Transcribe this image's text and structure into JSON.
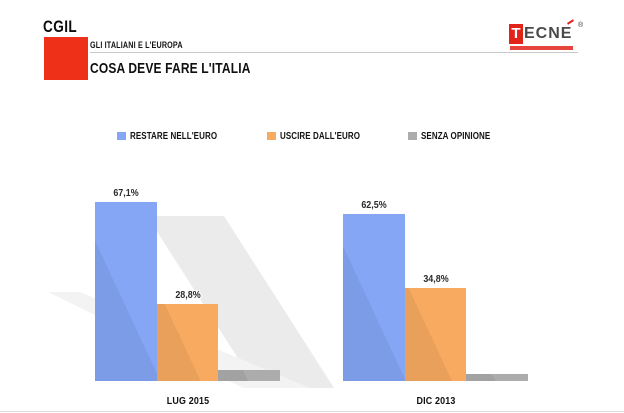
{
  "header": {
    "brand": "CGIL",
    "program": "GLI ITALIANI E L'EUROPA",
    "title": "COSA DEVE FARE L'ITALIA"
  },
  "tecne_logo": {
    "t": "T",
    "letters": "ECN",
    "last_letter": "E",
    "registered": "®"
  },
  "colors": {
    "cgil_red": "#ee3018",
    "tecne_red": "#e2231a",
    "restare_blue": "#85a6f5",
    "uscire_orange": "#f7aa60",
    "senza_gray": "#acacac",
    "watermark_gray": "#ebebeb",
    "watermark_gray_light": "#f3f3f3"
  },
  "chart_data": {
    "type": "bar",
    "title": "COSA DEVE FARE L'ITALIA",
    "subtitle": "GLI ITALIANI E L'EUROPA",
    "categories": [
      "LUG 2015",
      "DIC 2013"
    ],
    "series": [
      {
        "name": "RESTARE NELL'EURO",
        "color": "#85a6f5",
        "values": [
          67.1,
          62.5
        ],
        "labels": [
          "67,1%",
          "62,5%"
        ]
      },
      {
        "name": "USCIRE DALL'EURO",
        "color": "#f7aa60",
        "values": [
          28.8,
          34.8
        ],
        "labels": [
          "28,8%",
          "34,8%"
        ]
      },
      {
        "name": "SENZA OPINIONE",
        "color": "#acacac",
        "values": [
          4.1,
          2.7
        ],
        "labels": [
          null,
          null
        ]
      }
    ],
    "ylim": [
      0,
      100
    ],
    "value_suffix": "%",
    "decimal_separator": ",",
    "legend_position": "top",
    "grid": false,
    "axes_visible": false
  }
}
